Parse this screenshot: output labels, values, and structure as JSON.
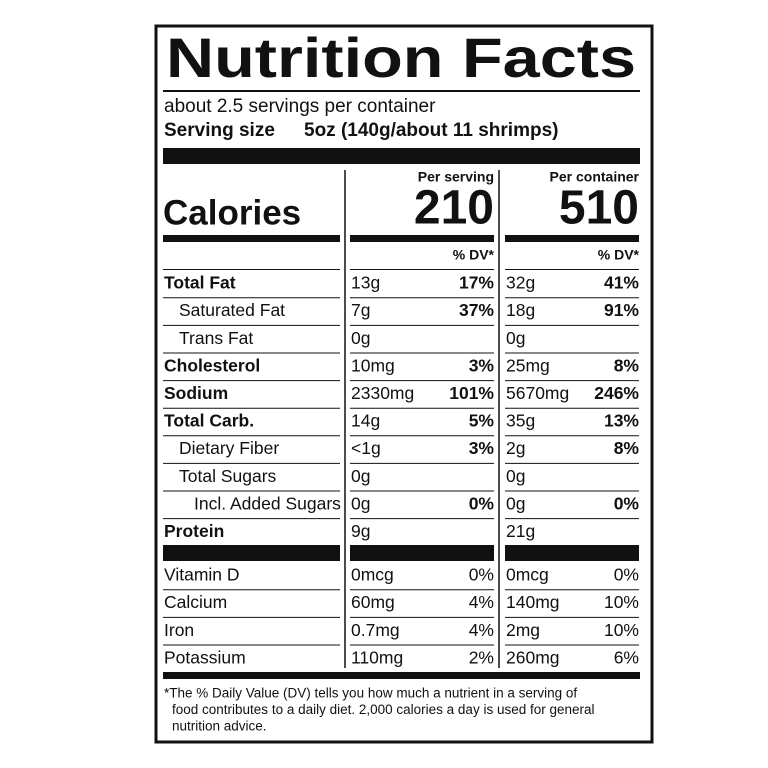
{
  "title": "Nutrition Facts",
  "servings": "about 2.5 servings per container",
  "serving_size": {
    "label": "Serving size",
    "value": "5oz (140g/about 11 shrimps)"
  },
  "columns": [
    "Per serving",
    "Per container"
  ],
  "calories": {
    "label": "Calories",
    "values": [
      210,
      510
    ]
  },
  "dv_header": [
    "% DV*",
    "% DV*"
  ],
  "nutrients": [
    {
      "name": "Total Fat",
      "serving": [
        "13g",
        "17%"
      ],
      "container": [
        "32g",
        "41%"
      ]
    },
    {
      "name": "Saturated Fat",
      "serving": [
        "7g",
        "37%"
      ],
      "container": [
        "18g",
        "91%"
      ]
    },
    {
      "name": "Trans Fat",
      "serving": [
        "0g"
      ],
      "container": [
        "0g"
      ]
    },
    {
      "name": "Cholesterol",
      "serving": [
        "10mg",
        "3%"
      ],
      "container": [
        "25mg",
        "8%"
      ]
    },
    {
      "name": "Sodium",
      "serving": [
        "2330mg",
        "101%"
      ],
      "container": [
        "5670mg",
        "246%"
      ]
    },
    {
      "name": "Total Carb.",
      "serving": [
        "14g",
        "5%"
      ],
      "container": [
        "35g",
        "13%"
      ]
    },
    {
      "name": "Dietary Fiber",
      "serving": [
        "<1g",
        "3%"
      ],
      "container": [
        "2g",
        "8%"
      ]
    },
    {
      "name": "Total Sugars",
      "serving": [
        "0g"
      ],
      "container": [
        "0g"
      ]
    },
    {
      "name": "Incl. Added Sugars",
      "serving": [
        "0g",
        "0%"
      ],
      "container": [
        "0g",
        "0%"
      ]
    },
    {
      "name": "Protein",
      "serving": [
        "9g"
      ],
      "container": [
        "21g"
      ]
    }
  ],
  "vitamins": [
    {
      "name": "Vitamin D",
      "serving": [
        "0mcg",
        "0%"
      ],
      "container": [
        "0mcg",
        "0%"
      ]
    },
    {
      "name": "Calcium",
      "serving": [
        "60mg",
        "4%"
      ],
      "container": [
        "140mg",
        "10%"
      ]
    },
    {
      "name": "Iron",
      "serving": [
        "0.7mg",
        "4%"
      ],
      "container": [
        "2mg",
        "10%"
      ]
    },
    {
      "name": "Potassium",
      "serving": [
        "110mg",
        "2%"
      ],
      "container": [
        "260mg",
        "6%"
      ]
    }
  ],
  "footnote": [
    "*The % Daily Value (DV) tells you how much a nutrient in a serving of",
    "food contributes to a daily diet. 2,000 calories a day is used for general",
    "nutrition advice."
  ]
}
